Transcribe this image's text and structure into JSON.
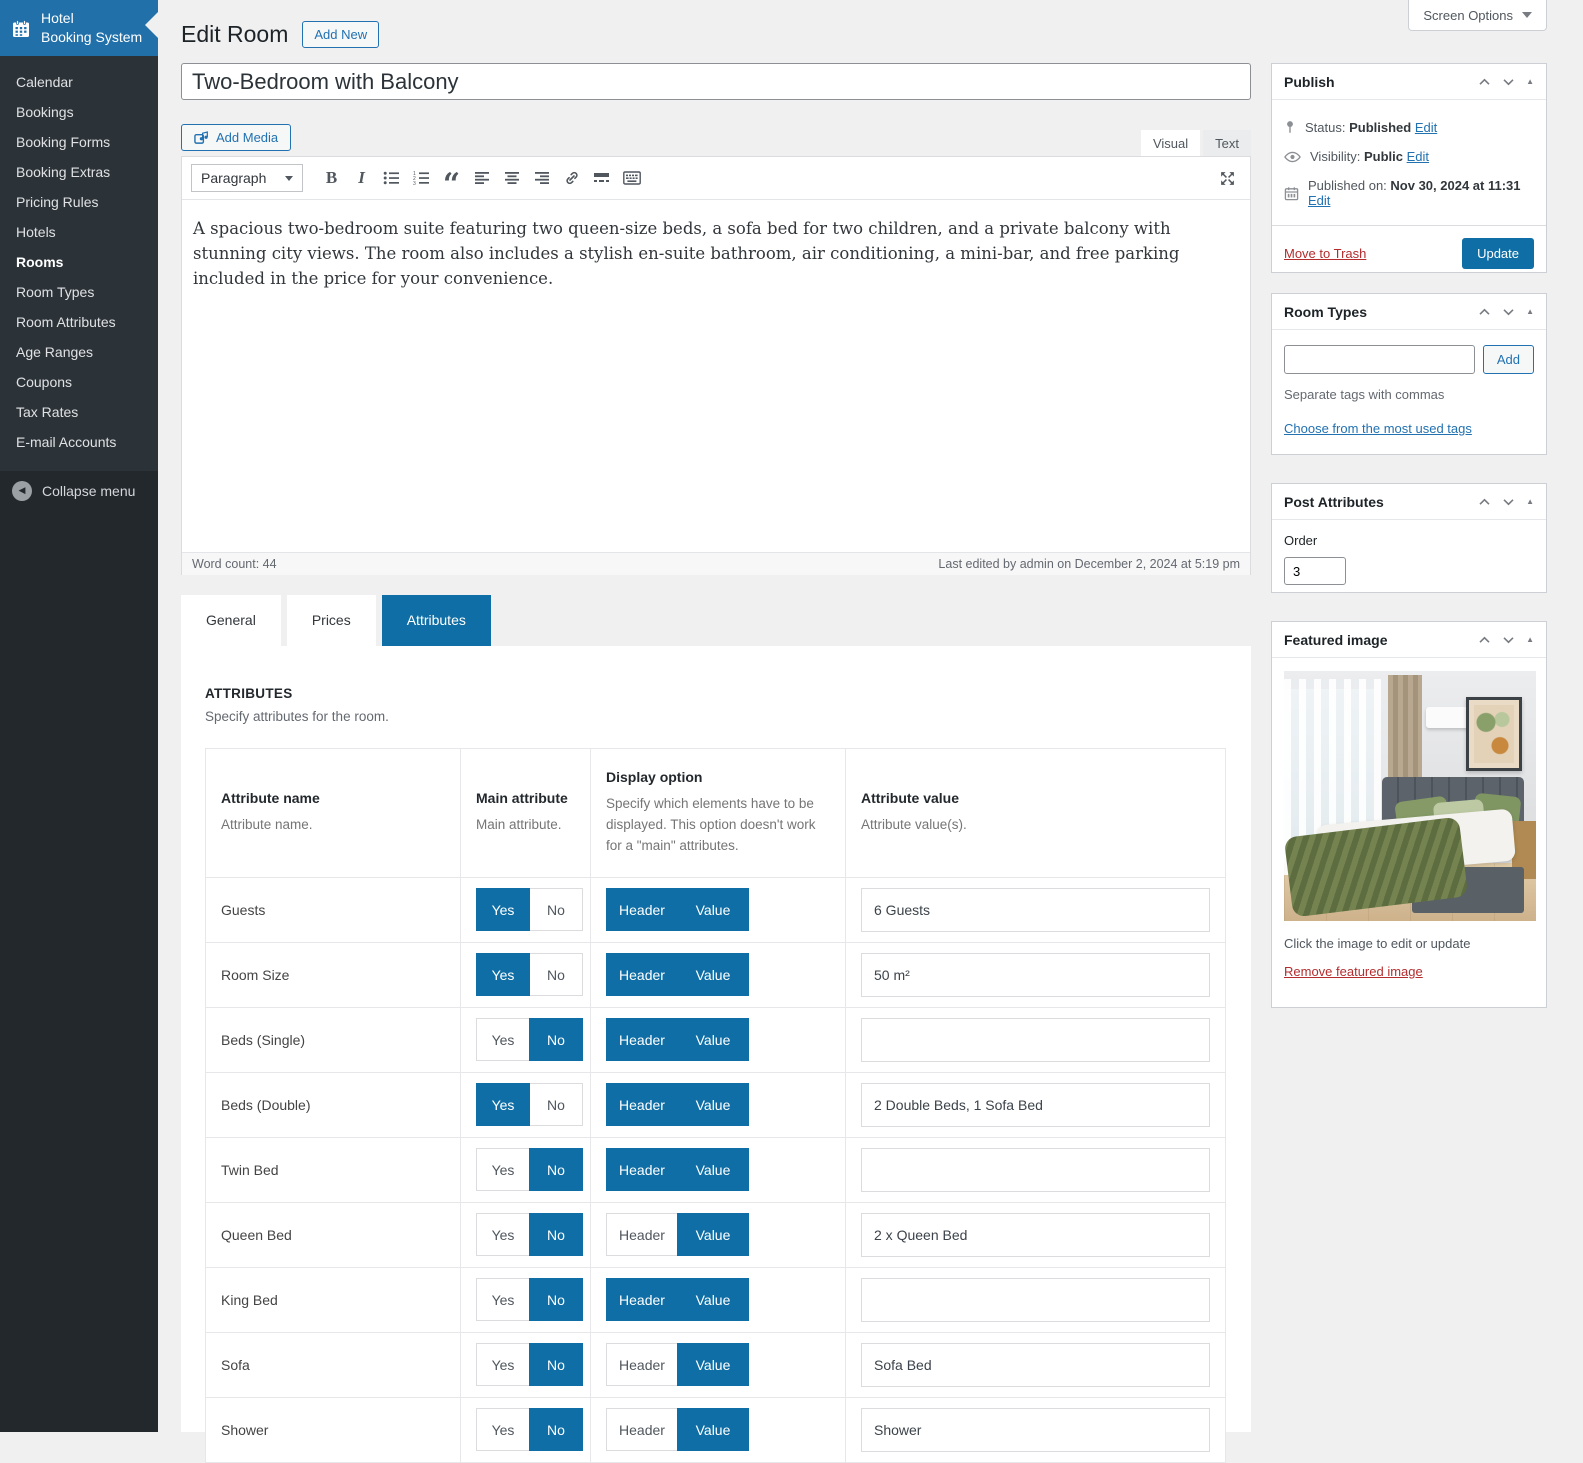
{
  "colors": {
    "accent_blue": "#0f6ea5",
    "link_blue": "#2271b1",
    "danger_red": "#b32d2e",
    "sidebar_dark": "#23282d",
    "brand_blue": "#2170a9"
  },
  "screen_options_label": "Screen Options",
  "sidebar": {
    "brand_line1": "Hotel",
    "brand_line2": "Booking System",
    "items": [
      "Calendar",
      "Bookings",
      "Booking Forms",
      "Booking Extras",
      "Pricing Rules",
      "Hotels",
      "Rooms",
      "Room Types",
      "Room Attributes",
      "Age Ranges",
      "Coupons",
      "Tax Rates",
      "E-mail Accounts"
    ],
    "active_item": "Rooms",
    "collapse_label": "Collapse menu"
  },
  "header": {
    "title": "Edit Room",
    "add_new_label": "Add New"
  },
  "editor": {
    "title_value": "Two-Bedroom with Balcony",
    "add_media_label": "Add Media",
    "visual_tab": "Visual",
    "text_tab": "Text",
    "paragraph_label": "Paragraph",
    "content": "A spacious two-bedroom suite featuring two queen-size beds, a sofa bed for two children, and a private balcony with stunning city views. The room also includes a stylish en-suite bathroom, air conditioning, a mini-bar, and free parking included in the price for your convenience.",
    "word_count_label": "Word count:",
    "word_count_value": "44",
    "last_edited": "Last edited by admin on December 2, 2024 at 5:19 pm",
    "toolbar_icons": [
      "bold-icon",
      "italic-icon",
      "bulleted-list-icon",
      "numbered-list-icon",
      "blockquote-icon",
      "align-left-icon",
      "align-center-icon",
      "align-right-icon",
      "link-icon",
      "more-tag-icon",
      "keyboard-icon",
      "fullscreen-icon"
    ]
  },
  "tabs": {
    "items": [
      {
        "label": "General",
        "active": false
      },
      {
        "label": "Prices",
        "active": false
      },
      {
        "label": "Attributes",
        "active": true
      }
    ]
  },
  "attributes_panel": {
    "title": "ATTRIBUTES",
    "subtitle": "Specify attributes for the room.",
    "columns": {
      "name": {
        "title": "Attribute name",
        "desc": "Attribute name."
      },
      "main": {
        "title": "Main attribute",
        "desc": "Main attribute."
      },
      "display": {
        "title": "Display option",
        "desc": "Specify which elements have to be displayed. This option doesn't work for a \"main\" attributes."
      },
      "value": {
        "title": "Attribute value",
        "desc": "Attribute value(s)."
      }
    },
    "toggle_labels": {
      "yes": "Yes",
      "no": "No",
      "header": "Header",
      "value": "Value"
    },
    "rows": [
      {
        "name": "Guests",
        "main": "yes",
        "header_on": true,
        "value_on": true,
        "value": "6 Guests"
      },
      {
        "name": "Room Size",
        "main": "yes",
        "header_on": true,
        "value_on": true,
        "value": "50 m²"
      },
      {
        "name": "Beds (Single)",
        "main": "no",
        "header_on": true,
        "value_on": true,
        "value": ""
      },
      {
        "name": "Beds (Double)",
        "main": "yes",
        "header_on": true,
        "value_on": true,
        "value": "2 Double Beds, 1 Sofa Bed"
      },
      {
        "name": "Twin Bed",
        "main": "no",
        "header_on": true,
        "value_on": true,
        "value": ""
      },
      {
        "name": "Queen Bed",
        "main": "no",
        "header_on": false,
        "value_on": true,
        "value": "2 x Queen Bed"
      },
      {
        "name": "King Bed",
        "main": "no",
        "header_on": true,
        "value_on": true,
        "value": ""
      },
      {
        "name": "Sofa",
        "main": "no",
        "header_on": false,
        "value_on": true,
        "value": "Sofa Bed"
      },
      {
        "name": "Shower",
        "main": "no",
        "header_on": false,
        "value_on": true,
        "value": "Shower"
      }
    ]
  },
  "publish_box": {
    "title": "Publish",
    "status_label": "Status:",
    "status_value": "Published",
    "visibility_label": "Visibility:",
    "visibility_value": "Public",
    "published_label": "Published on:",
    "published_value": "Nov 30, 2024 at 11:31",
    "edit_label": "Edit",
    "move_to_trash_label": "Move to Trash",
    "update_label": "Update"
  },
  "room_types_box": {
    "title": "Room Types",
    "input_value": "",
    "add_label": "Add",
    "hint": "Separate tags with commas",
    "choose_link": "Choose from the most used tags"
  },
  "post_attributes_box": {
    "title": "Post Attributes",
    "order_label": "Order",
    "order_value": "3"
  },
  "featured_image_box": {
    "title": "Featured image",
    "caption": "Click the image to edit or update",
    "remove_link": "Remove featured image"
  }
}
